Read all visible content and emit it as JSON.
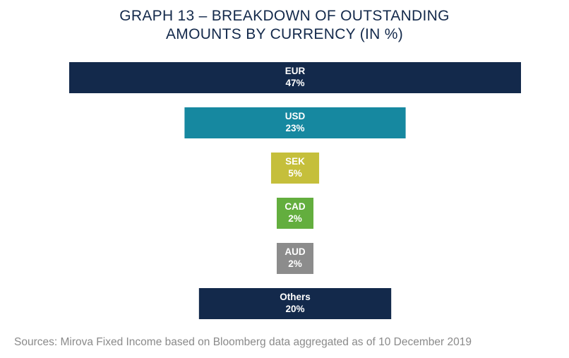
{
  "title_line1": "GRAPH 13 – BREAKDOWN OF OUTSTANDING",
  "title_line2": "AMOUNTS BY CURRENCY (IN %)",
  "source": "Sources: Mirova Fixed Income based on Bloomberg data aggregated as of 10 December 2019",
  "chart_data": {
    "type": "bar",
    "layout": "funnel",
    "title": "GRAPH 13 – BREAKDOWN OF OUTSTANDING AMOUNTS BY CURRENCY (IN %)",
    "categories": [
      "EUR",
      "USD",
      "SEK",
      "CAD",
      "AUD",
      "Others"
    ],
    "values": [
      47,
      23,
      5,
      2,
      2,
      20
    ],
    "value_labels": [
      "47%",
      "23%",
      "5%",
      "2%",
      "2%",
      "20%"
    ],
    "unit": "%",
    "colors": [
      "#13294b",
      "#1688a0",
      "#c5bf3b",
      "#63ae3e",
      "#8c8c8c",
      "#13294b"
    ],
    "xlabel": "",
    "ylabel": "",
    "grid": false,
    "legend": "none"
  }
}
